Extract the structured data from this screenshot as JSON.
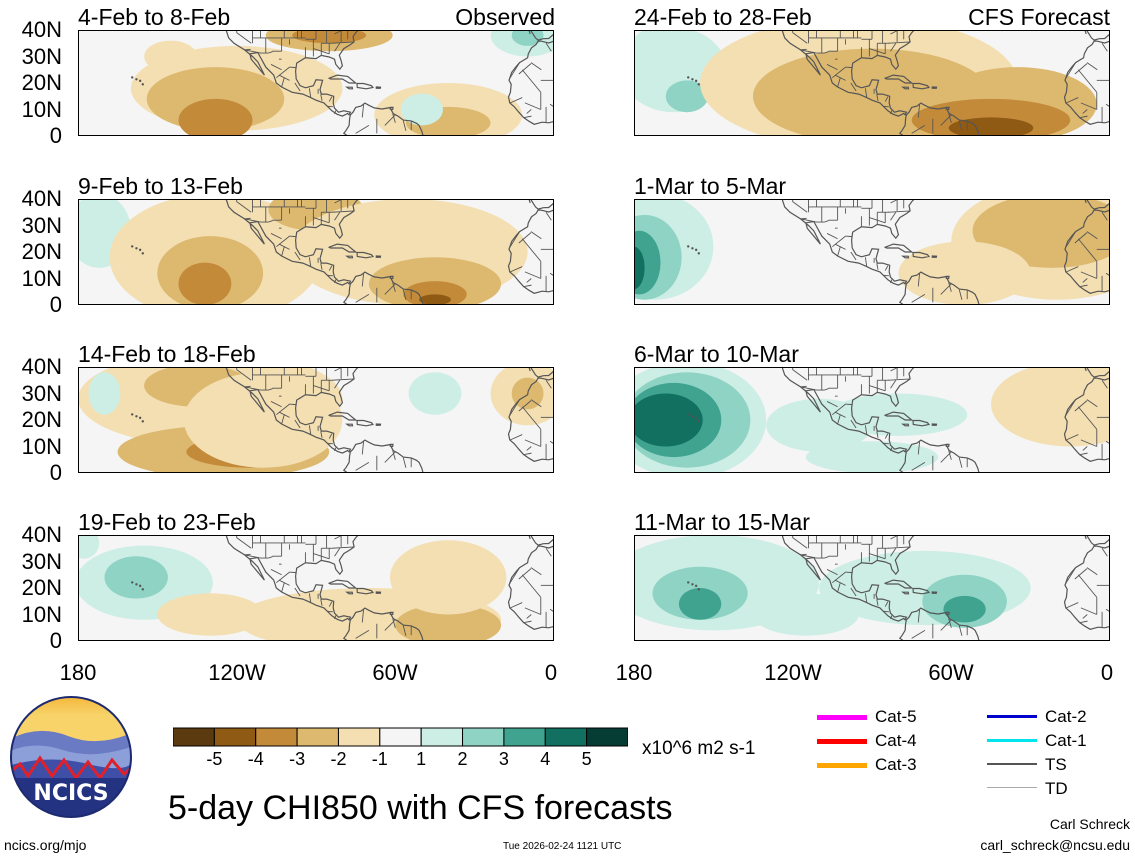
{
  "chart_data": {
    "type": "heatmap",
    "variable": "5-day CHI850 with CFS forecasts",
    "units": "x10^6 m2 s-1",
    "colorbar": {
      "levels": [
        "-5",
        "-4",
        "-3",
        "-2",
        "-1",
        "1",
        "2",
        "3",
        "4",
        "5"
      ],
      "colors": [
        "#5a3a0e",
        "#8e5a14",
        "#c38a3a",
        "#ddb970",
        "#f3dfb2",
        "#f5f5f5",
        "#cdeee5",
        "#8fd3c5",
        "#3fa390",
        "#11705f",
        "#053c34"
      ]
    },
    "axes": {
      "y_ticks": [
        "40N",
        "30N",
        "20N",
        "10N",
        "0"
      ],
      "x_ticks": [
        "180",
        "120W",
        "60W",
        "0"
      ],
      "lat_range": [
        0,
        40
      ],
      "lon_range": [
        -180,
        0
      ]
    },
    "columns": [
      {
        "label": "Observed",
        "panels": [
          {
            "title": "4-Feb to 8-Feb"
          },
          {
            "title": "9-Feb to 13-Feb"
          },
          {
            "title": "14-Feb to 18-Feb"
          },
          {
            "title": "19-Feb to 23-Feb"
          }
        ]
      },
      {
        "label": "CFS Forecast",
        "panels": [
          {
            "title": "24-Feb to 28-Feb"
          },
          {
            "title": "1-Mar to 5-Mar"
          },
          {
            "title": "6-Mar to 10-Mar"
          },
          {
            "title": "11-Mar to 15-Mar"
          }
        ]
      }
    ]
  },
  "title": "5-day CHI850 with CFS forecasts",
  "logo": {
    "text": "NCICS"
  },
  "legend": [
    {
      "label": "Cat-5",
      "color": "#ff00ff"
    },
    {
      "label": "Cat-4",
      "color": "#ff0000"
    },
    {
      "label": "Cat-3",
      "color": "#ffa500"
    },
    {
      "label": "Cat-2",
      "color": "#0000cc"
    },
    {
      "label": "Cat-1",
      "color": "#00e5ee"
    },
    {
      "label": "TS",
      "color": "#555555"
    },
    {
      "label": "TD",
      "color": "#aaaaaa"
    }
  ],
  "footer": {
    "site": "ncics.org/mjo",
    "timestamp": "Tue 2026-02-24 1121 UTC",
    "author": "Carl Schreck",
    "email": "carl_schreck@ncsu.edu"
  }
}
